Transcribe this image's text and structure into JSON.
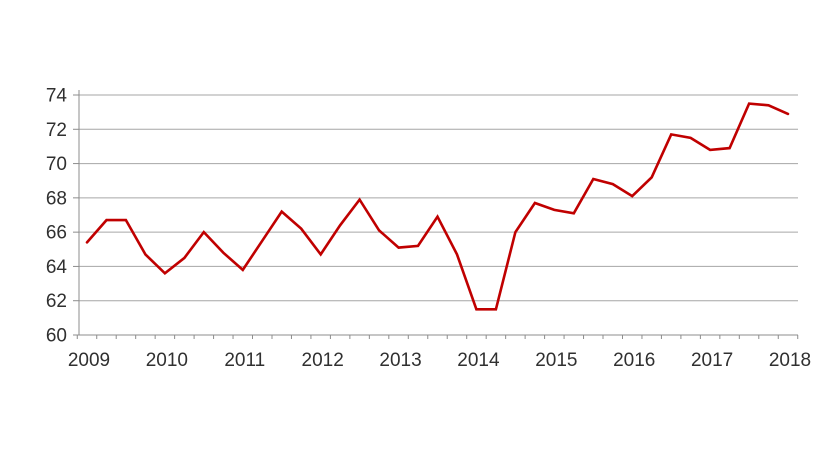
{
  "chart_data": {
    "type": "line",
    "title": "",
    "xlabel": "",
    "ylabel": "",
    "x": [
      "2009 Q1",
      "2009 Q2",
      "2009 Q3",
      "2009 Q4",
      "2010 Q1",
      "2010 Q2",
      "2010 Q3",
      "2010 Q4",
      "2011 Q1",
      "2011 Q2",
      "2011 Q3",
      "2011 Q4",
      "2012 Q1",
      "2012 Q2",
      "2012 Q3",
      "2012 Q4",
      "2013 Q1",
      "2013 Q2",
      "2013 Q3",
      "2013 Q4",
      "2014 Q1",
      "2014 Q2",
      "2014 Q3",
      "2014 Q4",
      "2015 Q1",
      "2015 Q2",
      "2015 Q3",
      "2015 Q4",
      "2016 Q1",
      "2016 Q2",
      "2016 Q3",
      "2016 Q4",
      "2017 Q1",
      "2017 Q2",
      "2017 Q3",
      "2017 Q4",
      "2018 Q1"
    ],
    "series": [
      {
        "color": "#c00000",
        "values": [
          65.4,
          66.7,
          66.7,
          64.7,
          63.6,
          64.5,
          66.0,
          64.8,
          63.8,
          65.5,
          67.2,
          66.2,
          64.7,
          66.4,
          67.9,
          66.1,
          65.1,
          65.2,
          66.9,
          64.7,
          61.5,
          61.5,
          66.0,
          67.7,
          67.3,
          67.1,
          69.1,
          68.8,
          68.1,
          69.2,
          71.7,
          71.5,
          70.8,
          70.9,
          73.5,
          73.4,
          72.9
        ]
      }
    ],
    "x_axis": {
      "tick_labels": [
        "2009",
        "2010",
        "2011",
        "2012",
        "2013",
        "2014",
        "2015",
        "2016",
        "2017",
        "2018"
      ],
      "minor_ticks_per_year": 4
    },
    "ylim": [
      60,
      74
    ],
    "yticks": [
      60,
      62,
      64,
      66,
      68,
      70,
      72,
      74
    ],
    "grid": true,
    "legend": false,
    "colors": {
      "line": "#c00000",
      "grid": "#a6a6a6",
      "axis": "#8c8c8c",
      "label": "#303030",
      "background": "#ffffff"
    }
  }
}
